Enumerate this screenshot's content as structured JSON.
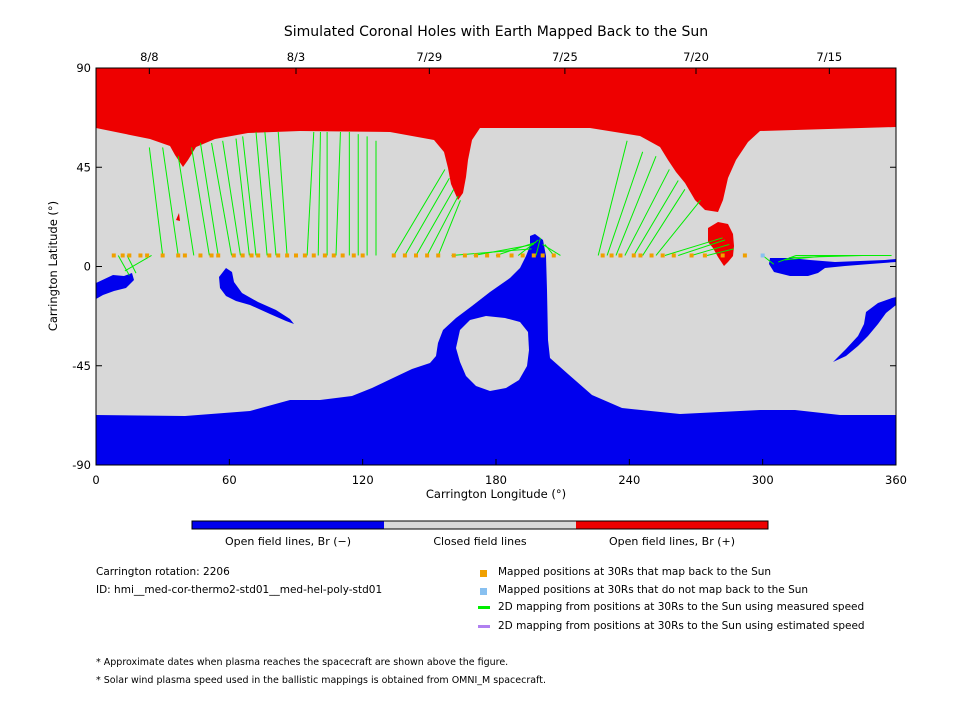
{
  "chart_data": {
    "type": "map",
    "title": "Simulated Coronal Holes with Earth Mapped Back to the Sun",
    "xlabel": "Carrington Longitude (°)",
    "ylabel": "Carrington Latitude (°)",
    "xlim": [
      0,
      360
    ],
    "ylim": [
      -90,
      90
    ],
    "xticks": [
      0,
      60,
      120,
      180,
      240,
      300,
      360
    ],
    "yticks": [
      -90,
      -45,
      0,
      45,
      90
    ],
    "date_ticks": [
      {
        "lon": 24,
        "label": "8/8"
      },
      {
        "lon": 90,
        "label": "8/3"
      },
      {
        "lon": 150,
        "label": "7/29"
      },
      {
        "lon": 211,
        "label": "7/25"
      },
      {
        "lon": 270,
        "label": "7/20"
      },
      {
        "lon": 330,
        "label": "7/15"
      }
    ],
    "colors": {
      "open_negative": "#0000ee",
      "closed": "#d8d8d8",
      "open_positive": "#ee0000",
      "mapped": "#f0a000",
      "not_mapped": "#88c0f0",
      "measured_speed": "#00ee00",
      "estimated_speed": "#b080f0"
    },
    "colorbar": [
      {
        "label": "Open field lines, Br (−)",
        "color": "#0000ee"
      },
      {
        "label": "Closed field lines",
        "color": "#d8d8d8"
      },
      {
        "label": "Open field lines, Br (+)",
        "color": "#ee0000"
      }
    ],
    "mapped_points_at_30rs": {
      "lat": 5,
      "lon": [
        8,
        12,
        15,
        20,
        23,
        30,
        37,
        40,
        47,
        52,
        55,
        62,
        66,
        70,
        73,
        78,
        82,
        86,
        90,
        94,
        98,
        103,
        107,
        111,
        116,
        120,
        134,
        139,
        144,
        149,
        154,
        161,
        166,
        171,
        176,
        181,
        187,
        192,
        197,
        201,
        206,
        228,
        232,
        236,
        242,
        245,
        250,
        255,
        260,
        268,
        274,
        282,
        292
      ]
    },
    "unmapped_points_at_30rs": {
      "lat": 5,
      "lon": [
        300
      ]
    },
    "mapping_lines": [
      {
        "from": [
          10,
          5
        ],
        "to": [
          15,
          -4
        ]
      },
      {
        "from": [
          14,
          5
        ],
        "to": [
          18,
          -3
        ]
      },
      {
        "from": [
          25,
          5
        ],
        "to": [
          13,
          -2
        ]
      },
      {
        "from": [
          30,
          5
        ],
        "to": [
          24,
          54
        ]
      },
      {
        "from": [
          37,
          5
        ],
        "to": [
          30,
          54
        ]
      },
      {
        "from": [
          44,
          5
        ],
        "to": [
          37,
          50
        ]
      },
      {
        "from": [
          51,
          5
        ],
        "to": [
          43,
          54
        ]
      },
      {
        "from": [
          55,
          5
        ],
        "to": [
          47,
          56
        ]
      },
      {
        "from": [
          61,
          5
        ],
        "to": [
          52,
          56
        ]
      },
      {
        "from": [
          65,
          5
        ],
        "to": [
          57,
          57
        ]
      },
      {
        "from": [
          69,
          5
        ],
        "to": [
          63,
          58
        ]
      },
      {
        "from": [
          72,
          5
        ],
        "to": [
          66,
          59
        ]
      },
      {
        "from": [
          77,
          5
        ],
        "to": [
          72,
          61
        ]
      },
      {
        "from": [
          81,
          5
        ],
        "to": [
          76,
          61
        ]
      },
      {
        "from": [
          86,
          5
        ],
        "to": [
          82,
          61
        ]
      },
      {
        "from": [
          95,
          5
        ],
        "to": [
          98,
          61
        ]
      },
      {
        "from": [
          100,
          5
        ],
        "to": [
          101,
          61
        ]
      },
      {
        "from": [
          104,
          5
        ],
        "to": [
          104,
          61
        ]
      },
      {
        "from": [
          108,
          5
        ],
        "to": [
          110,
          61
        ]
      },
      {
        "from": [
          114,
          5
        ],
        "to": [
          114,
          61
        ]
      },
      {
        "from": [
          118,
          5
        ],
        "to": [
          118,
          60
        ]
      },
      {
        "from": [
          122,
          5
        ],
        "to": [
          122,
          59
        ]
      },
      {
        "from": [
          126,
          5
        ],
        "to": [
          126,
          57
        ]
      },
      {
        "from": [
          134,
          5
        ],
        "to": [
          157,
          44
        ]
      },
      {
        "from": [
          139,
          5
        ],
        "to": [
          159,
          40
        ]
      },
      {
        "from": [
          144,
          5
        ],
        "to": [
          161,
          35
        ]
      },
      {
        "from": [
          149,
          5
        ],
        "to": [
          163,
          32
        ]
      },
      {
        "from": [
          154,
          5
        ],
        "to": [
          164,
          30
        ]
      },
      {
        "from": [
          160,
          5
        ],
        "to": [
          196,
          8
        ]
      },
      {
        "from": [
          170,
          5
        ],
        "to": [
          197,
          10
        ]
      },
      {
        "from": [
          180,
          5
        ],
        "to": [
          198,
          11
        ]
      },
      {
        "from": [
          190,
          5
        ],
        "to": [
          199,
          12
        ]
      },
      {
        "from": [
          198,
          5
        ],
        "to": [
          200,
          13
        ]
      },
      {
        "from": [
          206,
          5
        ],
        "to": [
          202,
          10
        ]
      },
      {
        "from": [
          209,
          5
        ],
        "to": [
          201,
          10
        ]
      },
      {
        "from": [
          226,
          5
        ],
        "to": [
          239,
          57
        ]
      },
      {
        "from": [
          230,
          5
        ],
        "to": [
          246,
          52
        ]
      },
      {
        "from": [
          234,
          5
        ],
        "to": [
          252,
          50
        ]
      },
      {
        "from": [
          238,
          5
        ],
        "to": [
          258,
          44
        ]
      },
      {
        "from": [
          242,
          5
        ],
        "to": [
          262,
          39
        ]
      },
      {
        "from": [
          246,
          5
        ],
        "to": [
          265,
          35
        ]
      },
      {
        "from": [
          252,
          5
        ],
        "to": [
          272,
          30
        ]
      },
      {
        "from": [
          256,
          5
        ],
        "to": [
          282,
          13
        ]
      },
      {
        "from": [
          262,
          5
        ],
        "to": [
          283,
          12
        ]
      },
      {
        "from": [
          268,
          5
        ],
        "to": [
          285,
          10
        ]
      },
      {
        "from": [
          275,
          5
        ],
        "to": [
          287,
          8
        ]
      },
      {
        "from": [
          300,
          5
        ],
        "to": [
          305,
          1
        ]
      },
      {
        "from": [
          315,
          5
        ],
        "to": [
          307,
          2
        ]
      },
      {
        "from": [
          330,
          5
        ],
        "to": [
          310,
          3
        ]
      },
      {
        "from": [
          345,
          5
        ],
        "to": [
          312,
          4
        ]
      },
      {
        "from": [
          358,
          5
        ],
        "to": [
          315,
          5
        ]
      }
    ]
  },
  "info": {
    "rotation": "Carrington rotation: 2206",
    "id": "ID: hmi__med-cor-thermo2-std01__med-hel-poly-std01"
  },
  "legend": [
    {
      "label": "Mapped positions at 30Rs that map back to the Sun",
      "kind": "square",
      "color": "#f0a000"
    },
    {
      "label": "Mapped positions at 30Rs that do not map back to the Sun",
      "kind": "square",
      "color": "#88c0f0"
    },
    {
      "label": "2D mapping from positions at 30Rs to the Sun using measured speed",
      "kind": "line",
      "color": "#00ee00"
    },
    {
      "label": "2D mapping from positions at 30Rs to the Sun using estimated speed",
      "kind": "line",
      "color": "#b080f0"
    }
  ],
  "notes": [
    "* Approximate dates when plasma reaches the spacecraft are shown above the figure.",
    "* Solar wind plasma speed used in the ballistic mappings is obtained from OMNI_M spacecraft."
  ]
}
